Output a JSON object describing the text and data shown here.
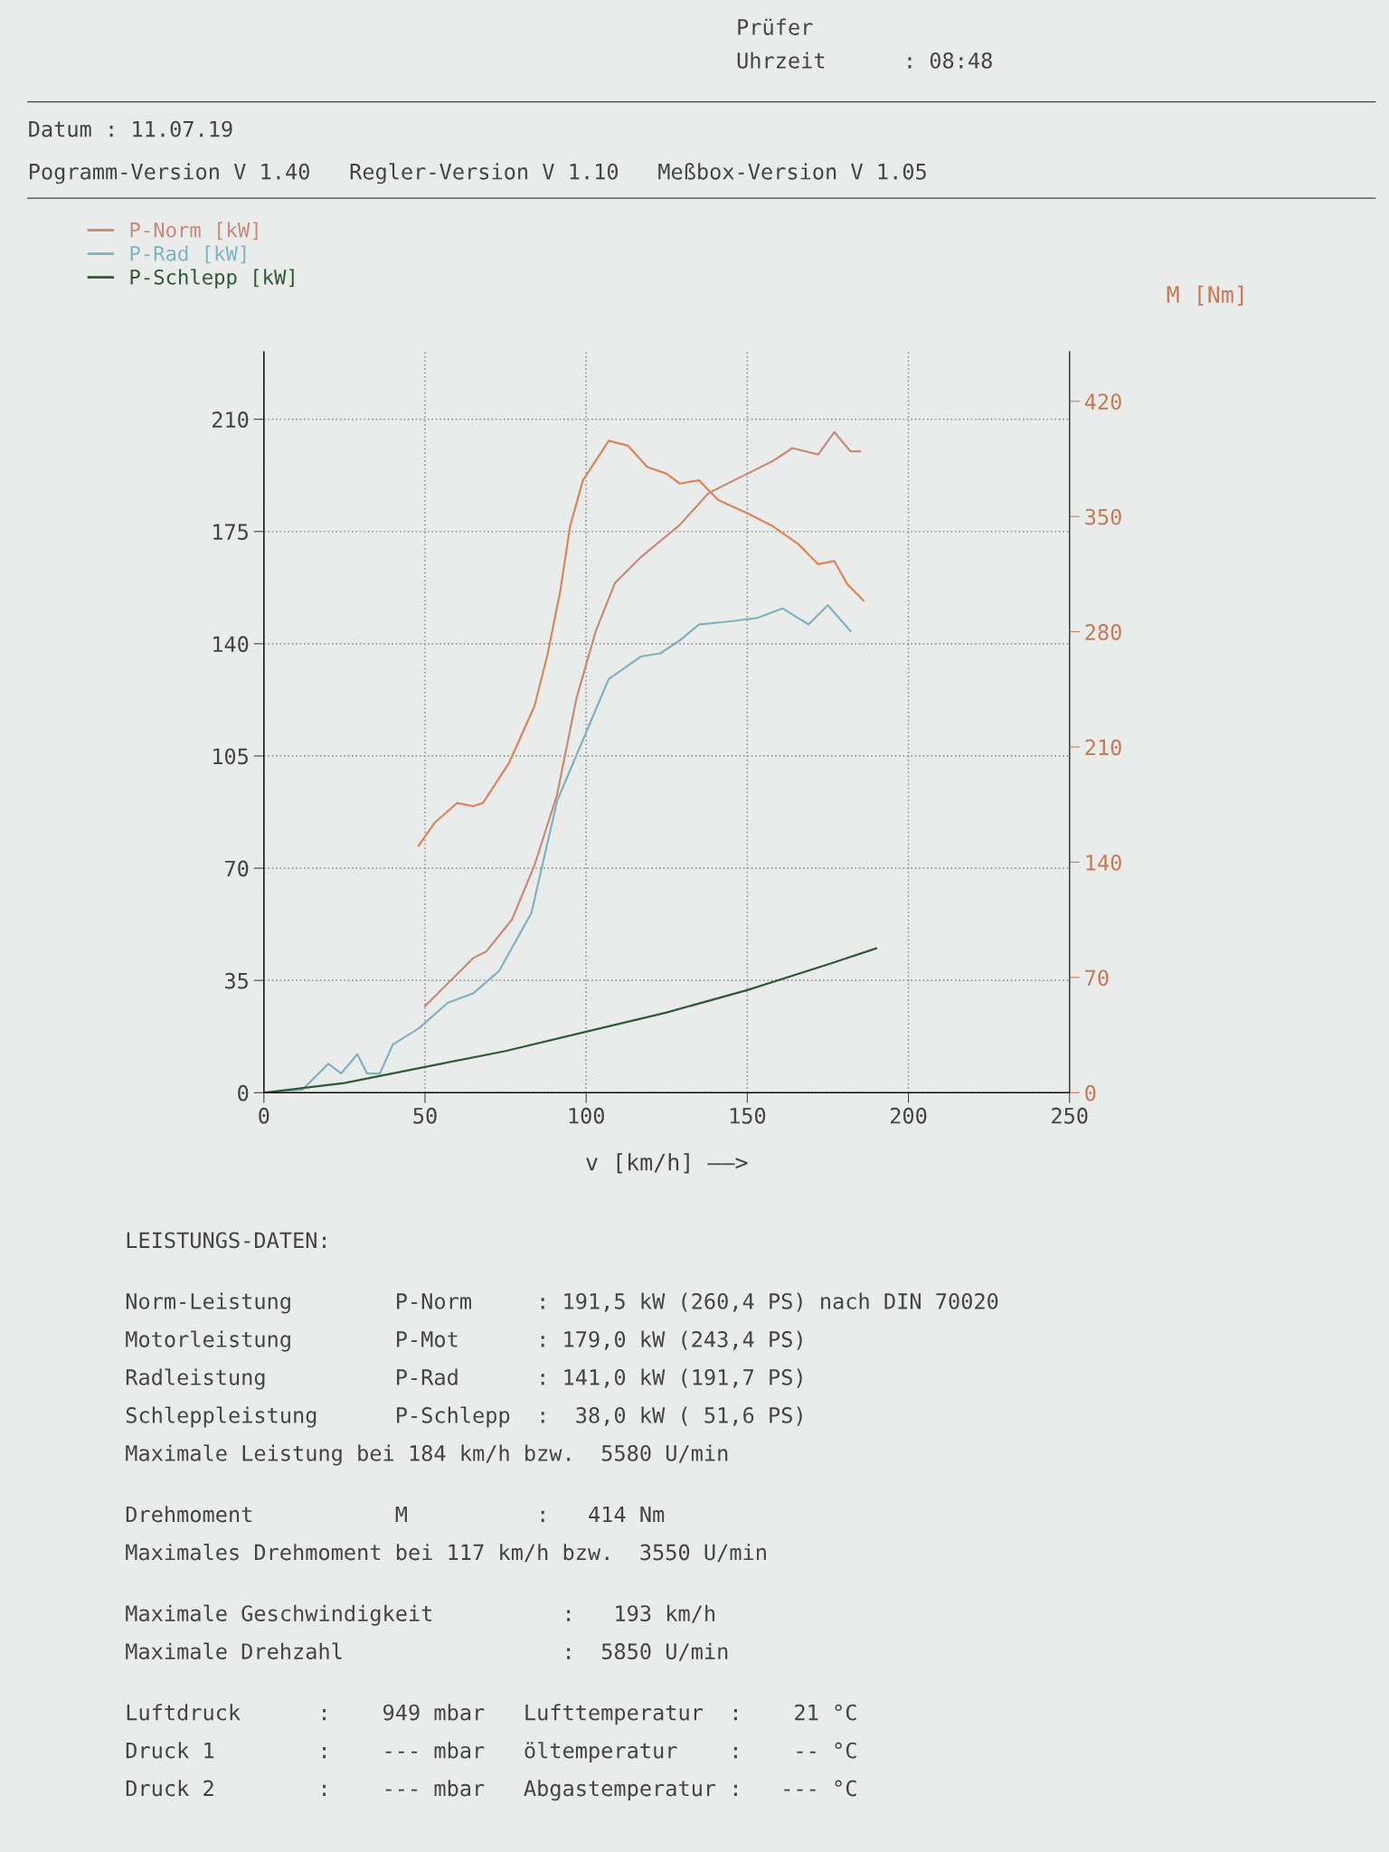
{
  "chart_data": {
    "type": "line",
    "xlabel": "v [km/h] ——>",
    "y2label": "M [Nm]",
    "xlim": [
      0,
      250
    ],
    "xticks": [
      0,
      50,
      100,
      150,
      200,
      250
    ],
    "ylim": [
      0,
      231
    ],
    "yticks": [
      0,
      35,
      70,
      105,
      140,
      175,
      210
    ],
    "y2lim": [
      0,
      450
    ],
    "y2ticks": [
      0,
      70,
      140,
      210,
      280,
      350,
      420
    ],
    "grid": true,
    "legend": "top left",
    "marker": "none",
    "line_style": "solid",
    "series": [
      {
        "name": "P-Norm [kW]",
        "color": "#c98a78",
        "x": [
          50,
          57,
          65,
          69,
          77,
          84,
          91,
          97,
          103,
          109,
          117,
          123,
          129,
          138,
          150,
          158,
          164,
          172,
          177,
          182,
          185
        ],
        "values": [
          27,
          34,
          42,
          44,
          54,
          71,
          93,
          123,
          144,
          159,
          167,
          172,
          177,
          187,
          193,
          197,
          201,
          199,
          206,
          200,
          200
        ]
      },
      {
        "name": "P-Rad [kW]",
        "color": "#7fb3c0",
        "x": [
          0,
          12,
          20,
          24,
          29,
          32,
          36,
          40,
          48,
          57,
          65,
          73,
          83,
          91,
          99,
          107,
          117,
          123,
          129,
          135,
          145,
          153,
          161,
          169,
          175,
          182
        ],
        "values": [
          0,
          1,
          9,
          6,
          12,
          6,
          6,
          15,
          20,
          28,
          31,
          38,
          56,
          91,
          110,
          129,
          136,
          137,
          141,
          146,
          147,
          148,
          151,
          146,
          152,
          144
        ]
      },
      {
        "name": "P-Schlepp [kW]",
        "color": "#2f5a35",
        "x": [
          0,
          25,
          50,
          75,
          100,
          125,
          150,
          175,
          190
        ],
        "values": [
          0,
          3,
          8,
          13,
          19,
          25,
          32,
          40,
          45
        ]
      },
      {
        "color": "#d8865a",
        "axis": "y2",
        "x": [
          48,
          53,
          60,
          65,
          68,
          76,
          84,
          88,
          92,
          95,
          99,
          103,
          107,
          113,
          119,
          125,
          129,
          135,
          141,
          150,
          158,
          166,
          172,
          177,
          181,
          186
        ],
        "values": [
          150,
          164,
          176,
          174,
          176,
          200,
          235,
          266,
          305,
          344,
          372,
          384,
          396,
          393,
          380,
          376,
          370,
          372,
          360,
          352,
          344,
          333,
          321,
          323,
          309,
          299
        ]
      }
    ],
    "annotations": [
      "Prüfer",
      "Uhrzeit      : 08:48",
      "Datum : 11.07.19",
      "Pogramm-Version V 1.40   Regler-Version V 1.10   Meßbox-Version V 1.05",
      "LEISTUNGS-DATEN:",
      "Norm-Leistung        P-Norm     : 191,5 kW (260,4 PS) nach DIN 70020",
      "Motorleistung        P-Mot      : 179,0 kW (243,4 PS)",
      "Radleistung          P-Rad      : 141,0 kW (191,7 PS)",
      "Schleppleistung      P-Schlepp  :  38,0 kW ( 51,6 PS)",
      "Maximale Leistung bei 184 km/h bzw.  5580 U/min",
      "Drehmoment           M          :   414 Nm",
      "Maximales Drehmoment bei 117 km/h bzw.  3550 U/min",
      "Maximale Geschwindigkeit          :   193 km/h",
      "Maximale Drehzahl                 :  5850 U/min",
      "Luftdruck      :    949 mbar   Lufttemperatur  :    21 °C",
      "Druck 1        :    --- mbar   öltemperatur    :    -- °C",
      "Druck 2        :    --- mbar   Abgastemperatur :   --- °C"
    ]
  }
}
